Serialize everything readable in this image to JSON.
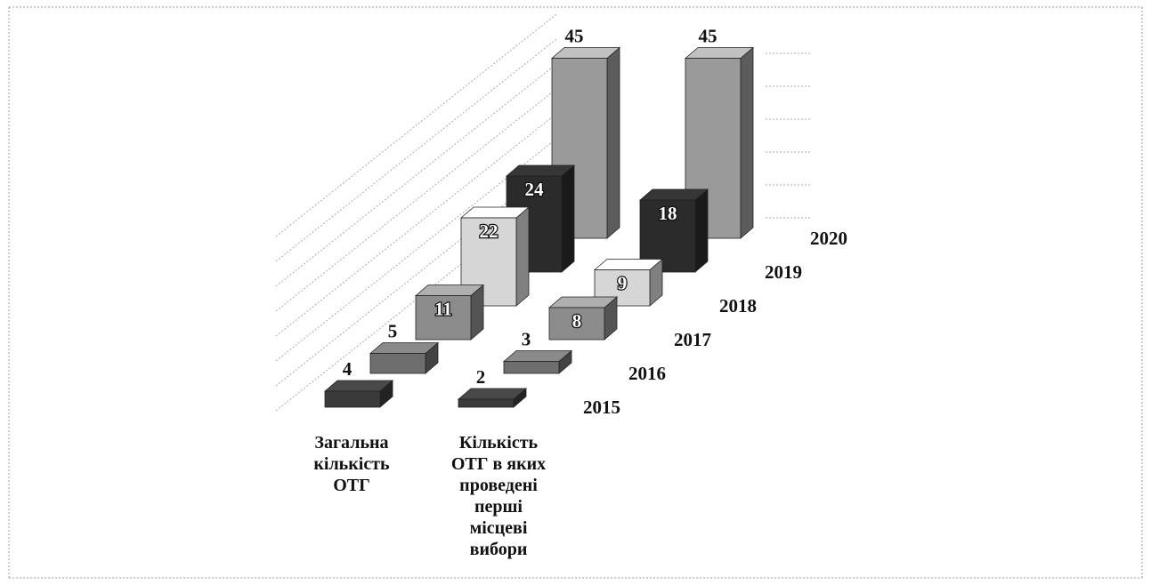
{
  "chart_data": {
    "type": "bar3d",
    "categories": [
      "Загальна\nкількість\nОТГ",
      "Кількість\nОТГ в яких\nпроведені\nперші\nмісцеві\nвибори"
    ],
    "series": [
      {
        "name": "2015",
        "color": "#3a3a3a",
        "values": [
          4,
          2
        ]
      },
      {
        "name": "2016",
        "color": "#6e6e6e",
        "values": [
          5,
          3
        ]
      },
      {
        "name": "2017",
        "color": "#8c8c8c",
        "values": [
          11,
          8
        ]
      },
      {
        "name": "2018",
        "color": "#d6d6d6",
        "values": [
          22,
          9
        ]
      },
      {
        "name": "2019",
        "color": "#2b2b2b",
        "values": [
          24,
          18
        ]
      },
      {
        "name": "2020",
        "color": "#9a9a9a",
        "values": [
          45,
          45
        ]
      }
    ]
  }
}
